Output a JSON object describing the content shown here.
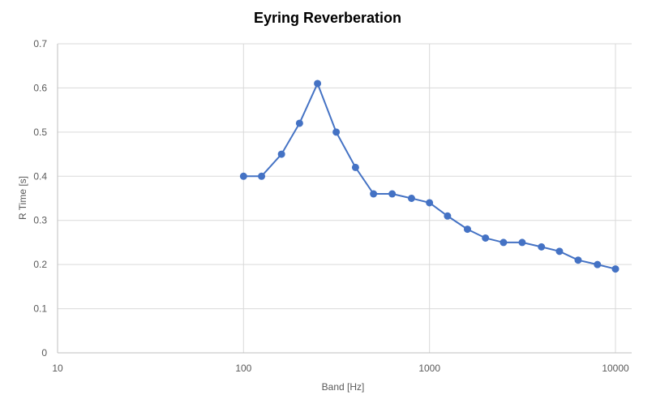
{
  "chart_data": {
    "type": "scatter",
    "title": "Eyring Reverberation",
    "xlabel": "Band [Hz]",
    "ylabel": "R Time [s]",
    "xscale": "log",
    "xlim": [
      10,
      10000
    ],
    "ylim": [
      0,
      0.7
    ],
    "xticks": [
      "10",
      "100",
      "1000",
      "10000"
    ],
    "yticks": [
      "0",
      "0.1",
      "0.2",
      "0.3",
      "0.4",
      "0.5",
      "0.6",
      "0.7"
    ],
    "grid": true,
    "legend": "none",
    "color": "#4472c4",
    "series": [
      {
        "x": [
          100,
          125,
          160,
          200,
          250,
          315,
          400,
          500,
          630,
          800,
          1000,
          1250,
          1600,
          2000,
          2500,
          3150,
          4000,
          5000,
          6300,
          8000,
          10000
        ],
        "y": [
          0.4,
          0.4,
          0.45,
          0.52,
          0.61,
          0.5,
          0.42,
          0.36,
          0.36,
          0.35,
          0.34,
          0.31,
          0.28,
          0.26,
          0.25,
          0.25,
          0.24,
          0.23,
          0.21,
          0.2,
          0.19
        ]
      }
    ]
  }
}
